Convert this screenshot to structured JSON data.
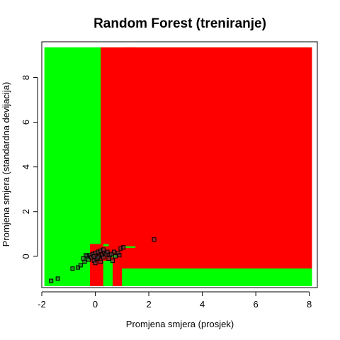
{
  "chart_data": {
    "type": "scatter",
    "title": "Random Forest (treniranje)",
    "xlabel": "Promjena smjera (prosjek)",
    "ylabel": "Promjena smjera (standardna devijacija)",
    "xlim": [
      -2.0,
      8.3
    ],
    "ylim": [
      -1.4,
      9.6
    ],
    "xticks": [
      "-2",
      "0",
      "2",
      "4",
      "6",
      "8"
    ],
    "yticks": [
      "0",
      "2",
      "4",
      "6",
      "8"
    ],
    "grid": false,
    "legend": "none",
    "colors": {
      "class_a": "#00ff00",
      "class_b": "#ff0000",
      "point_fill": "#4d4d4d",
      "point_stroke": "#000000"
    },
    "regions": [
      {
        "class": "class_a",
        "x": [
          -1.9,
          8.1
        ],
        "y": [
          -1.33,
          9.35
        ]
      },
      {
        "class": "class_b",
        "x": [
          0.2,
          8.1
        ],
        "y": [
          -0.55,
          9.35
        ]
      },
      {
        "class": "class_b",
        "x": [
          -0.2,
          0.3
        ],
        "y": [
          -1.33,
          0.55
        ]
      },
      {
        "class": "class_b",
        "x": [
          0.3,
          1.0
        ],
        "y": [
          -0.2,
          0.5
        ]
      },
      {
        "class": "class_b",
        "x": [
          0.65,
          1.0
        ],
        "y": [
          -1.33,
          -0.2
        ]
      },
      {
        "class": "class_b",
        "x": [
          1.0,
          1.5
        ],
        "y": [
          0.45,
          9.35
        ]
      },
      {
        "class": "class_a",
        "x": [
          -1.9,
          -0.2
        ],
        "y": [
          -1.33,
          9.35
        ]
      },
      {
        "class": "class_a",
        "x": [
          -0.2,
          0.2
        ],
        "y": [
          0.55,
          9.35
        ]
      },
      {
        "class": "class_a",
        "x": [
          0.3,
          0.65
        ],
        "y": [
          -1.33,
          -0.2
        ]
      },
      {
        "class": "class_a",
        "x": [
          1.0,
          8.1
        ],
        "y": [
          -1.33,
          -0.55
        ]
      },
      {
        "class": "class_a",
        "x": [
          0.55,
          0.85
        ],
        "y": [
          -0.05,
          0.05
        ]
      },
      {
        "class": "class_a",
        "x": [
          1.1,
          1.5
        ],
        "y": [
          0.38,
          0.45
        ]
      },
      {
        "class": "class_a",
        "x": [
          0.3,
          0.5
        ],
        "y": [
          0.45,
          0.55
        ]
      }
    ],
    "points": [
      {
        "x": -1.65,
        "y": -1.1
      },
      {
        "x": -1.4,
        "y": -1.0
      },
      {
        "x": -0.85,
        "y": -0.55
      },
      {
        "x": -0.65,
        "y": -0.5
      },
      {
        "x": -0.55,
        "y": -0.4
      },
      {
        "x": -0.45,
        "y": -0.1
      },
      {
        "x": -0.4,
        "y": -0.25
      },
      {
        "x": -0.3,
        "y": 0.0
      },
      {
        "x": -0.25,
        "y": -0.15
      },
      {
        "x": -0.2,
        "y": 0.05
      },
      {
        "x": -0.15,
        "y": -0.05
      },
      {
        "x": -0.1,
        "y": 0.1
      },
      {
        "x": -0.05,
        "y": -0.2
      },
      {
        "x": 0.0,
        "y": 0.15
      },
      {
        "x": 0.05,
        "y": -0.1
      },
      {
        "x": 0.1,
        "y": 0.2
      },
      {
        "x": 0.15,
        "y": 0.0
      },
      {
        "x": 0.2,
        "y": 0.25
      },
      {
        "x": 0.25,
        "y": 0.05
      },
      {
        "x": 0.3,
        "y": -0.05
      },
      {
        "x": 0.35,
        "y": 0.15
      },
      {
        "x": 0.0,
        "y": -0.3
      },
      {
        "x": 0.4,
        "y": 0.1
      },
      {
        "x": 0.5,
        "y": -0.1
      },
      {
        "x": 0.55,
        "y": 0.05
      },
      {
        "x": 0.7,
        "y": 0.2
      },
      {
        "x": 0.75,
        "y": 0.0
      },
      {
        "x": 0.85,
        "y": 0.15
      },
      {
        "x": 0.95,
        "y": 0.35
      },
      {
        "x": 1.05,
        "y": 0.4
      },
      {
        "x": 0.65,
        "y": -0.2
      },
      {
        "x": 0.2,
        "y": -0.25
      },
      {
        "x": -0.35,
        "y": 0.05
      },
      {
        "x": 0.45,
        "y": 0.2
      },
      {
        "x": 2.2,
        "y": 0.75
      },
      {
        "x": 0.3,
        "y": 0.3
      },
      {
        "x": -0.05,
        "y": 0.0
      },
      {
        "x": 0.1,
        "y": -0.05
      },
      {
        "x": 0.6,
        "y": 0.1
      },
      {
        "x": 0.9,
        "y": 0.05
      }
    ]
  }
}
